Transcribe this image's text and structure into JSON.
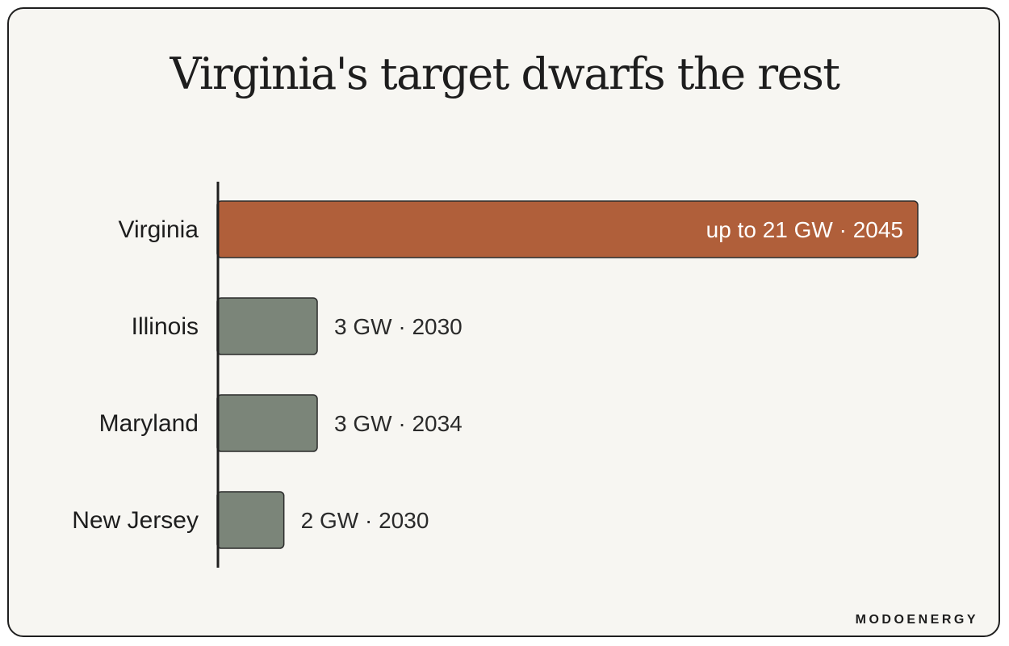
{
  "chart_data": {
    "type": "bar",
    "orientation": "horizontal",
    "title": "Virginia's target dwarfs the rest",
    "categories": [
      "Virginia",
      "Illinois",
      "Maryland",
      "New Jersey"
    ],
    "values": [
      21,
      3,
      3,
      2
    ],
    "unit": "GW",
    "years": [
      2045,
      2030,
      2034,
      2030
    ],
    "data_labels": [
      "up to 21 GW · 2045",
      "3 GW · 2030",
      "3 GW · 2034",
      "2 GW · 2030"
    ],
    "xlim": [
      0,
      21
    ],
    "grid": false,
    "legend": "none"
  },
  "colors": {
    "highlight": "#b05f3a",
    "default": "#7b8579",
    "axis": "#1f1f1f",
    "background": "#f7f6f2"
  },
  "brand": "MODOENERGY"
}
